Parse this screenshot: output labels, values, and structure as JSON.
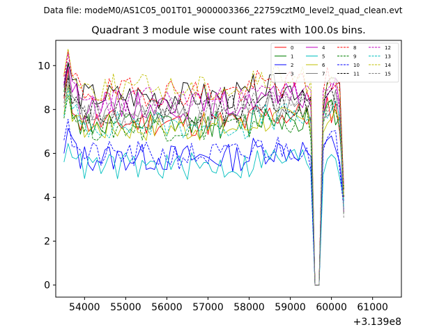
{
  "chart_data": {
    "type": "line",
    "suptitle": "Data file: modeM0/AS1C05_001T01_9000003366_22759cztM0_level2_quad_clean.evt",
    "title": "Quadrant 3 module wise count rates with 100.0s bins.",
    "xlabel": "",
    "ylabel": "",
    "x_offset_label": "+3.139e8",
    "xlim": [
      53300,
      61700
    ],
    "ylim": [
      -0.55,
      11.15
    ],
    "x_ticks": [
      54000,
      55000,
      56000,
      57000,
      58000,
      59000,
      60000,
      61000
    ],
    "x_tick_labels": [
      "54000",
      "55000",
      "56000",
      "57000",
      "58000",
      "59000",
      "60000",
      "61000"
    ],
    "y_ticks": [
      0,
      2,
      4,
      6,
      8,
      10
    ],
    "y_tick_labels": [
      "0",
      "2",
      "4",
      "6",
      "8",
      "10"
    ],
    "x_start": 53500,
    "x_step": 100,
    "n_points": 69,
    "gap": {
      "start": 59500,
      "end": 59900
    },
    "dropout": {
      "x": [
        59600,
        59700
      ],
      "level": 0
    },
    "legend_position": "top-right",
    "series": [
      {
        "name": "0",
        "color": "#ff0000",
        "style": "solid",
        "base": 7.4,
        "start": 8.5,
        "seed": 11
      },
      {
        "name": "1",
        "color": "#008000",
        "style": "solid",
        "base": 7.3,
        "start": 8.8,
        "seed": 12
      },
      {
        "name": "2",
        "color": "#0000ff",
        "style": "solid",
        "base": 5.8,
        "start": 6.0,
        "seed": 13
      },
      {
        "name": "3",
        "color": "#000000",
        "style": "solid",
        "base": 8.6,
        "start": 9.1,
        "seed": 14
      },
      {
        "name": "4",
        "color": "#bf00bf",
        "style": "solid",
        "base": 8.2,
        "start": 9.0,
        "seed": 15
      },
      {
        "name": "5",
        "color": "#00bfbf",
        "style": "solid",
        "base": 5.4,
        "start": 5.6,
        "seed": 16
      },
      {
        "name": "6",
        "color": "#bfbf00",
        "style": "solid",
        "base": 7.2,
        "start": 7.8,
        "seed": 17
      },
      {
        "name": "7",
        "color": "#808080",
        "style": "solid",
        "base": 7.7,
        "start": 8.3,
        "seed": 18
      },
      {
        "name": "8",
        "color": "#ff0000",
        "style": "dashed",
        "base": 8.8,
        "start": 9.5,
        "seed": 19
      },
      {
        "name": "9",
        "color": "#008000",
        "style": "dashed",
        "base": 7.2,
        "start": 7.6,
        "seed": 20
      },
      {
        "name": "10",
        "color": "#0000ff",
        "style": "dashed",
        "base": 5.9,
        "start": 6.6,
        "seed": 21
      },
      {
        "name": "11",
        "color": "#000000",
        "style": "dashed",
        "base": 8.0,
        "start": 8.6,
        "seed": 22
      },
      {
        "name": "12",
        "color": "#bf00bf",
        "style": "dashed",
        "base": 8.4,
        "start": 9.2,
        "seed": 23
      },
      {
        "name": "13",
        "color": "#00bfbf",
        "style": "dashed",
        "base": 7.3,
        "start": 7.7,
        "seed": 24
      },
      {
        "name": "14",
        "color": "#bfbf00",
        "style": "dashed",
        "base": 9.0,
        "start": 9.6,
        "seed": 25
      },
      {
        "name": "15",
        "color": "#808080",
        "style": "dashed",
        "base": 7.9,
        "start": 8.1,
        "seed": 26
      }
    ]
  }
}
